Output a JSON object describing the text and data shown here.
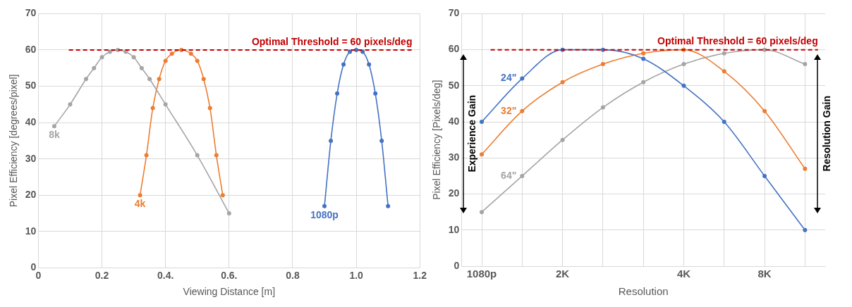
{
  "chart_data": [
    {
      "type": "line",
      "xlabel": "Viewing Distance [m]",
      "ylabel": "Pixel Efficiency [degrees/pixel]",
      "xlim": [
        0,
        1.2
      ],
      "xticks": [
        0,
        0.2,
        {
          "value": 0.4,
          "label": "0.4."
        },
        {
          "value": 0.6,
          "label": "0.6."
        },
        0.8,
        {
          "value": 1.0,
          "label": "1.0"
        },
        1.2
      ],
      "ylim": [
        0,
        70
      ],
      "yticks": [
        0,
        10,
        20,
        30,
        40,
        50,
        60,
        70
      ],
      "grid": true,
      "legend": false,
      "marker": "circle",
      "line_style": "solid",
      "ref_lines": [
        {
          "axis": "y",
          "value": 60,
          "label": "Optimal Threshold = 60 pixels/deg",
          "color": "#c00000",
          "line_style": "dashed"
        }
      ],
      "series": [
        {
          "name": "8k",
          "color": "#a5a5a5",
          "x": [
            0.05,
            0.1,
            0.15,
            0.175,
            0.2,
            0.225,
            0.25,
            0.275,
            0.3,
            0.325,
            0.35,
            0.4,
            0.5,
            0.6
          ],
          "values": [
            39,
            45,
            52,
            55,
            58,
            59.5,
            60,
            59.5,
            58,
            55,
            52,
            45,
            31,
            15
          ]
        },
        {
          "name": "4k",
          "color": "#ed7d31",
          "x": [
            0.32,
            0.34,
            0.36,
            0.38,
            0.4,
            0.42,
            0.45,
            0.48,
            0.5,
            0.52,
            0.54,
            0.56,
            0.58
          ],
          "values": [
            20,
            31,
            44,
            52,
            57,
            59,
            60,
            59,
            57,
            52,
            44,
            31,
            20
          ]
        },
        {
          "name": "1080p",
          "color": "#4472c4",
          "x": [
            0.9,
            0.92,
            0.94,
            0.96,
            0.98,
            1.0,
            1.02,
            1.04,
            1.06,
            1.08,
            1.1
          ],
          "values": [
            17,
            35,
            48,
            56,
            59.5,
            60,
            59.5,
            56,
            48,
            35,
            17
          ]
        }
      ]
    },
    {
      "type": "line",
      "xlabel": "Resolution",
      "ylabel": "Pixel Efficiency [Pixels/deg]",
      "categories": [
        "1080p",
        null,
        "2K",
        null,
        null,
        "4K",
        null,
        "8K",
        null
      ],
      "ylim": [
        0,
        70
      ],
      "yticks": [
        0,
        10,
        20,
        30,
        40,
        50,
        60,
        70
      ],
      "grid": true,
      "legend": false,
      "marker": "circle",
      "line_style": "solid",
      "ref_lines": [
        {
          "axis": "y",
          "value": 60,
          "label": "Optimal Threshold = 60 pixels/deg",
          "color": "#c00000",
          "line_style": "dashed"
        }
      ],
      "annotations": [
        "Experience Gain",
        "Resolution Gain"
      ],
      "series": [
        {
          "name": "24\"",
          "color": "#4472c4",
          "values": [
            40,
            52,
            60,
            60,
            57.5,
            50,
            40,
            25,
            10
          ]
        },
        {
          "name": "32\"",
          "color": "#ed7d31",
          "values": [
            31,
            43,
            51,
            56,
            59,
            60,
            54,
            43,
            27
          ]
        },
        {
          "name": "64\"",
          "color": "#a5a5a5",
          "values": [
            15,
            25,
            35,
            44,
            51,
            56,
            59,
            60,
            56
          ]
        }
      ]
    }
  ]
}
